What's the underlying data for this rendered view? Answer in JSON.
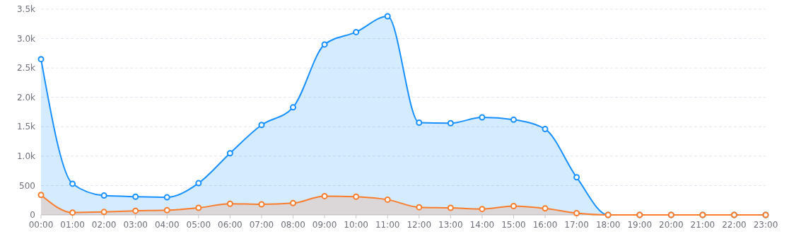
{
  "chart_data": {
    "type": "area",
    "categories": [
      "00:00",
      "01:00",
      "02:00",
      "03:00",
      "04:00",
      "05:00",
      "06:00",
      "07:00",
      "08:00",
      "09:00",
      "10:00",
      "11:00",
      "12:00",
      "13:00",
      "14:00",
      "15:00",
      "16:00",
      "17:00",
      "18:00",
      "19:00",
      "20:00",
      "21:00",
      "22:00",
      "23:00"
    ],
    "series": [
      {
        "color": "#1890ff",
        "values": [
          2650,
          530,
          330,
          310,
          300,
          540,
          1050,
          1530,
          1830,
          2900,
          3110,
          3380,
          1570,
          1560,
          1660,
          1620,
          1460,
          640,
          0,
          0,
          0,
          0,
          0,
          0
        ]
      },
      {
        "color": "#fa7d2d",
        "values": [
          340,
          40,
          50,
          70,
          80,
          120,
          190,
          180,
          200,
          320,
          310,
          260,
          130,
          120,
          100,
          150,
          110,
          30,
          0,
          0,
          0,
          0,
          0,
          0
        ]
      }
    ],
    "ylim": [
      0,
      3500
    ],
    "yticks": [
      0,
      500,
      {
        "value": 1000,
        "label": "1.0k"
      },
      {
        "value": 1500,
        "label": "1.5k"
      },
      {
        "value": 2000,
        "label": "2.0k"
      },
      {
        "value": 2500,
        "label": "2.5k"
      },
      {
        "value": 3000,
        "label": "3.0k"
      },
      {
        "value": 3500,
        "label": "3.5k"
      }
    ],
    "grid": "y",
    "marker": "circle"
  }
}
